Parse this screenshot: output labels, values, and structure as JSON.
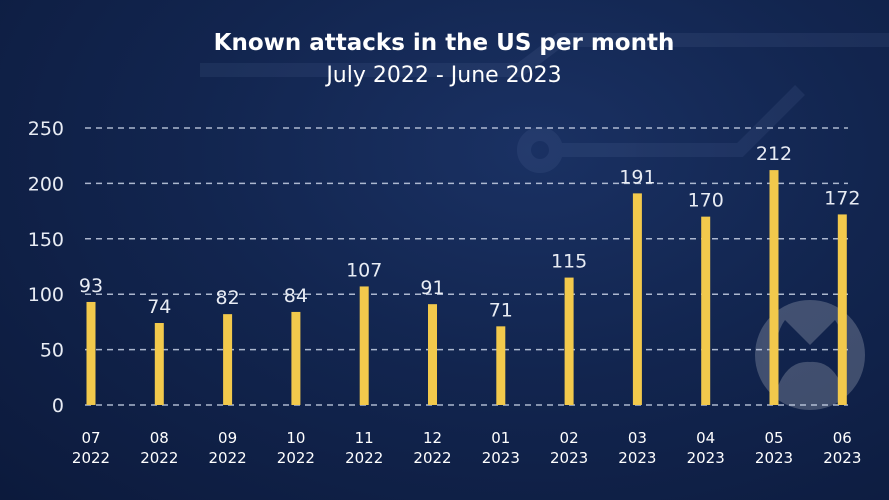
{
  "chart_data": {
    "type": "bar",
    "title": "Known attacks in the US per month",
    "subtitle": "July 2022 - June 2023",
    "categories": [
      {
        "month": "07",
        "year": "2022"
      },
      {
        "month": "08",
        "year": "2022"
      },
      {
        "month": "09",
        "year": "2022"
      },
      {
        "month": "10",
        "year": "2022"
      },
      {
        "month": "11",
        "year": "2022"
      },
      {
        "month": "12",
        "year": "2022"
      },
      {
        "month": "01",
        "year": "2023"
      },
      {
        "month": "02",
        "year": "2023"
      },
      {
        "month": "03",
        "year": "2023"
      },
      {
        "month": "04",
        "year": "2023"
      },
      {
        "month": "05",
        "year": "2023"
      },
      {
        "month": "06",
        "year": "2023"
      }
    ],
    "values": [
      93,
      74,
      82,
      84,
      107,
      91,
      71,
      115,
      191,
      170,
      212,
      172
    ],
    "yticks": [
      0,
      50,
      100,
      150,
      200,
      250
    ],
    "ylim": [
      0,
      250
    ],
    "xlabel": "",
    "ylabel": "",
    "grid": "horizontal dashed",
    "bar_color": "#f2c94c",
    "background_color": "#12254f"
  }
}
